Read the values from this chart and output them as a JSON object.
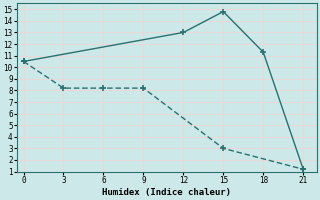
{
  "xlabel": "Humidex (Indice chaleur)",
  "bg_color": "#cce8e8",
  "grid_color": "#e8d8d8",
  "line_color": "#2a7070",
  "line1_x": [
    0,
    12,
    15,
    18,
    21
  ],
  "line1_y": [
    10.5,
    13.0,
    14.8,
    11.3,
    1.2
  ],
  "line2_x": [
    0,
    3,
    6,
    9,
    15,
    21
  ],
  "line2_y": [
    10.5,
    8.2,
    8.2,
    8.2,
    3.0,
    1.2
  ],
  "xlim": [
    -0.5,
    22
  ],
  "ylim": [
    1,
    15.5
  ],
  "xticks": [
    0,
    3,
    6,
    9,
    12,
    15,
    18,
    21
  ],
  "yticks": [
    1,
    2,
    3,
    4,
    5,
    6,
    7,
    8,
    9,
    10,
    11,
    12,
    13,
    14,
    15
  ]
}
